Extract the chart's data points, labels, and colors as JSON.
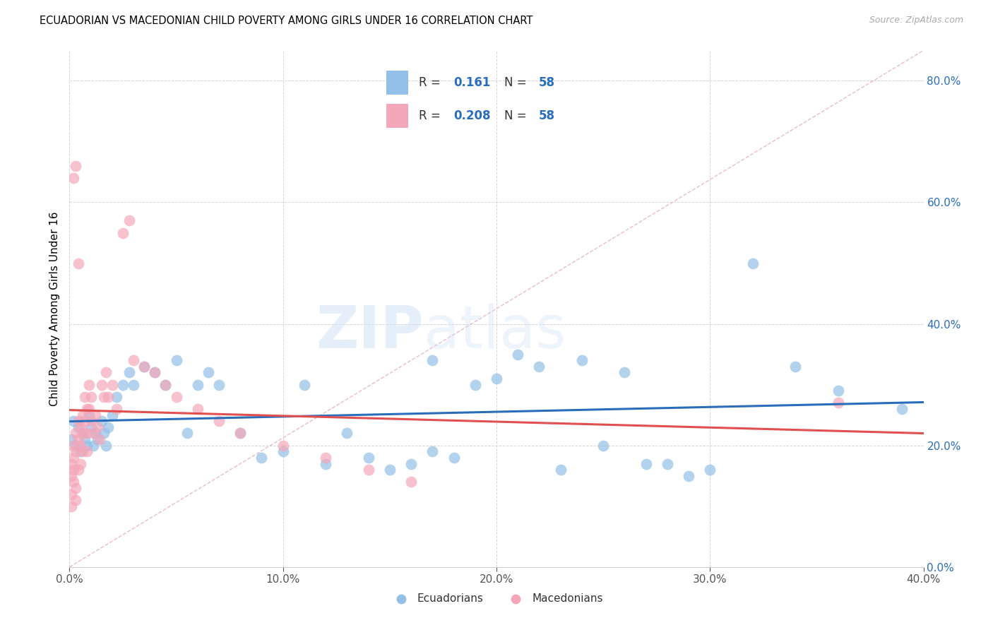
{
  "title": "ECUADORIAN VS MACEDONIAN CHILD POVERTY AMONG GIRLS UNDER 16 CORRELATION CHART",
  "source": "Source: ZipAtlas.com",
  "ylabel": "Child Poverty Among Girls Under 16",
  "xlim": [
    0.0,
    0.4
  ],
  "ylim": [
    0.0,
    0.85
  ],
  "watermark_zip": "ZIP",
  "watermark_atlas": "atlas",
  "legend_r_ecu": "0.161",
  "legend_n_ecu": "58",
  "legend_r_mac": "0.208",
  "legend_n_mac": "58",
  "color_ecu": "#92c0e8",
  "color_mac": "#f4a7b9",
  "color_ecu_line": "#2a6ebb",
  "color_mac_line": "#e05050",
  "color_diag": "#e8b4c8",
  "color_blue_text": "#2a6ebb",
  "xticks": [
    0.0,
    0.1,
    0.2,
    0.3,
    0.4
  ],
  "yticks": [
    0.0,
    0.2,
    0.4,
    0.6,
    0.8
  ],
  "ecu_x": [
    0.001,
    0.002,
    0.003,
    0.004,
    0.005,
    0.006,
    0.007,
    0.008,
    0.009,
    0.01,
    0.011,
    0.012,
    0.013,
    0.015,
    0.016,
    0.017,
    0.018,
    0.02,
    0.022,
    0.025,
    0.028,
    0.03,
    0.035,
    0.04,
    0.045,
    0.05,
    0.055,
    0.06,
    0.065,
    0.07,
    0.08,
    0.09,
    0.1,
    0.11,
    0.12,
    0.13,
    0.14,
    0.15,
    0.16,
    0.17,
    0.18,
    0.2,
    0.22,
    0.24,
    0.26,
    0.28,
    0.3,
    0.32,
    0.34,
    0.36,
    0.17,
    0.19,
    0.21,
    0.23,
    0.25,
    0.27,
    0.29,
    0.39
  ],
  "ecu_y": [
    0.21,
    0.24,
    0.2,
    0.23,
    0.19,
    0.22,
    0.21,
    0.2,
    0.25,
    0.23,
    0.2,
    0.22,
    0.21,
    0.24,
    0.22,
    0.2,
    0.23,
    0.25,
    0.28,
    0.3,
    0.32,
    0.3,
    0.33,
    0.32,
    0.3,
    0.34,
    0.22,
    0.3,
    0.32,
    0.3,
    0.22,
    0.18,
    0.19,
    0.3,
    0.17,
    0.22,
    0.18,
    0.16,
    0.17,
    0.19,
    0.18,
    0.31,
    0.33,
    0.34,
    0.32,
    0.17,
    0.16,
    0.5,
    0.33,
    0.29,
    0.34,
    0.3,
    0.35,
    0.16,
    0.2,
    0.17,
    0.15,
    0.26
  ],
  "mac_x": [
    0.001,
    0.001,
    0.001,
    0.001,
    0.002,
    0.002,
    0.002,
    0.002,
    0.003,
    0.003,
    0.003,
    0.003,
    0.004,
    0.004,
    0.004,
    0.005,
    0.005,
    0.005,
    0.006,
    0.006,
    0.006,
    0.007,
    0.007,
    0.008,
    0.008,
    0.008,
    0.009,
    0.009,
    0.01,
    0.01,
    0.011,
    0.012,
    0.013,
    0.014,
    0.015,
    0.016,
    0.017,
    0.018,
    0.02,
    0.022,
    0.025,
    0.028,
    0.03,
    0.035,
    0.04,
    0.045,
    0.05,
    0.06,
    0.07,
    0.08,
    0.1,
    0.12,
    0.14,
    0.16,
    0.002,
    0.003,
    0.004,
    0.36
  ],
  "mac_y": [
    0.12,
    0.15,
    0.17,
    0.1,
    0.14,
    0.18,
    0.16,
    0.2,
    0.22,
    0.19,
    0.13,
    0.11,
    0.24,
    0.21,
    0.16,
    0.23,
    0.2,
    0.17,
    0.25,
    0.22,
    0.19,
    0.28,
    0.24,
    0.26,
    0.22,
    0.19,
    0.3,
    0.26,
    0.28,
    0.24,
    0.22,
    0.25,
    0.23,
    0.21,
    0.3,
    0.28,
    0.32,
    0.28,
    0.3,
    0.26,
    0.55,
    0.57,
    0.34,
    0.33,
    0.32,
    0.3,
    0.28,
    0.26,
    0.24,
    0.22,
    0.2,
    0.18,
    0.16,
    0.14,
    0.64,
    0.66,
    0.5,
    0.27
  ]
}
